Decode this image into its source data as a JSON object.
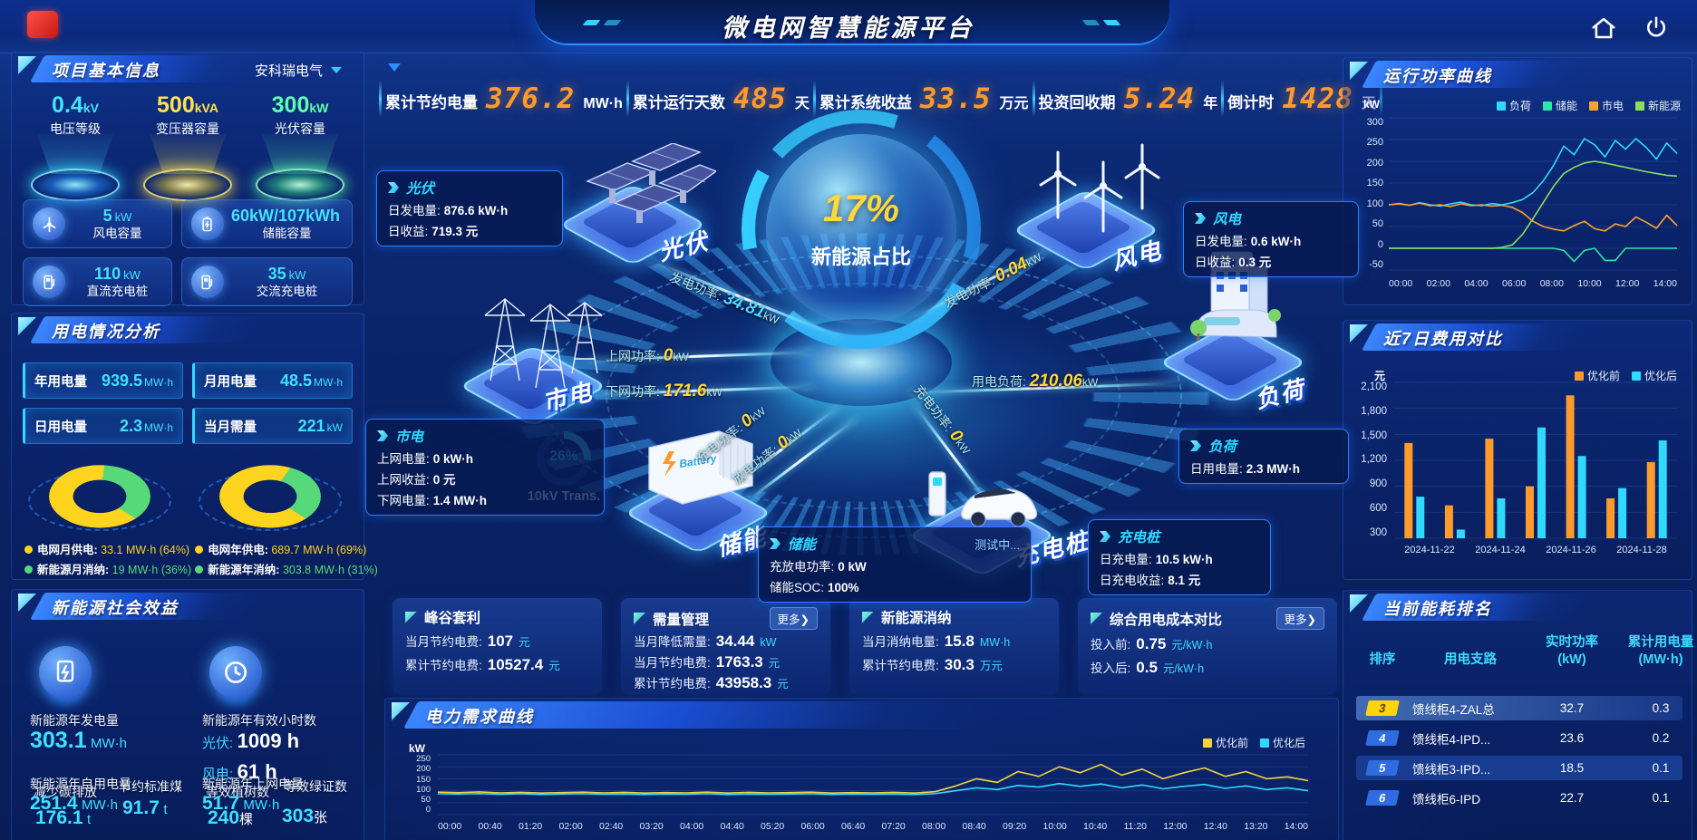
{
  "header": {
    "title": "微电网智慧能源平台"
  },
  "top_stats": [
    {
      "label": "累计节约电量",
      "value": "376.2",
      "unit": "MW·h"
    },
    {
      "label": "累计运行天数",
      "value": "485",
      "unit": "天"
    },
    {
      "label": "累计系统收益",
      "value": "33.5",
      "unit": "万元"
    },
    {
      "label": "投资回收期",
      "value": "5.24",
      "unit": "年"
    },
    {
      "label": "倒计时",
      "value": "1428",
      "unit": "天"
    }
  ],
  "project_info": {
    "title": "项目基本信息",
    "company": "安科瑞电气",
    "podiums": [
      {
        "value": "0.4",
        "unit": "kV",
        "label": "电压等级"
      },
      {
        "value": "500",
        "unit": "kVA",
        "label": "变压器容量"
      },
      {
        "value": "300",
        "unit": "kW",
        "label": "光伏容量"
      }
    ],
    "cards": [
      {
        "value": "5",
        "unit": "kW",
        "label": "风电容量"
      },
      {
        "value": "60kW/107kWh",
        "unit": "",
        "label": "储能容量"
      },
      {
        "value": "110",
        "unit": "kW",
        "label": "直流充电桩"
      },
      {
        "value": "35",
        "unit": "kW",
        "label": "交流充电桩"
      }
    ]
  },
  "usage": {
    "title": "用电情况分析",
    "stats": [
      {
        "label": "年用电量",
        "value": "939.5",
        "unit": "MW·h"
      },
      {
        "label": "月用电量",
        "value": "48.5",
        "unit": "MW·h"
      },
      {
        "label": "日用电量",
        "value": "2.3",
        "unit": "MW·h"
      },
      {
        "label": "当月需量",
        "value": "221",
        "unit": "kW"
      }
    ],
    "month_legend": [
      {
        "label": "电网月供电:",
        "value": "33.1 MW·h (64%)"
      },
      {
        "label": "新能源月消纳:",
        "value": "19 MW·h (36%)"
      }
    ],
    "year_legend": [
      {
        "label": "电网年供电:",
        "value": "689.7 MW·h (69%)"
      },
      {
        "label": "新能源年消纳:",
        "value": "303.8 MW·h (31%)"
      }
    ]
  },
  "benefits": {
    "title": "新能源社会效益",
    "gen_label": "新能源年发电量",
    "gen_value": "303.1",
    "gen_unit": "MW·h",
    "hours_label": "新能源年有效小时数",
    "pv_label": "光伏:",
    "pv_value": "1009 h",
    "wind_label": "风电:",
    "wind_value": "61 h",
    "self_label": "新能源年自用电量",
    "self_value": "251.4",
    "self_unit": "MW·h",
    "co2_label": "减少碳排放",
    "co2_value": "176.1",
    "co2_unit": "t",
    "coal_label": "节约标准煤",
    "coal_value": "91.7",
    "coal_unit": "t",
    "feed_label": "新能源年上网电量",
    "feed_value": "51.7",
    "feed_unit": "MW·h",
    "tree_label": "等效植树数",
    "tree_value": "240",
    "tree_unit": "棵",
    "cert_label": "等效绿证数",
    "cert_value": "303",
    "cert_unit": "张"
  },
  "scene": {
    "ratio_value": "17%",
    "ratio_label": "新能源占比",
    "gauge_value": "26%",
    "gauge_label": "10kV Trans.",
    "battery_box_text": "Battery",
    "nodes": {
      "pv": "光伏",
      "wind": "风电",
      "grid": "市电",
      "load": "负荷",
      "storage": "储能",
      "charger": "充电桩"
    },
    "flows": {
      "pv_gen": {
        "label": "发电功率:",
        "value": "34.81",
        "unit": "kW"
      },
      "grid_up": {
        "label": "上网功率:",
        "value": "0",
        "unit": "kW"
      },
      "grid_down": {
        "label": "下网功率:",
        "value": "171.6",
        "unit": "kW"
      },
      "wind_gen": {
        "label": "发电功率:",
        "value": "0.04",
        "unit": "kW"
      },
      "load_power": {
        "label": "用电负荷:",
        "value": "210.06",
        "unit": "kW"
      },
      "storage_charge": {
        "label": "充电功率:",
        "value": "0",
        "unit": "kW"
      },
      "storage_discharge": {
        "label": "放电功率:",
        "value": "0",
        "unit": "kW"
      },
      "charger_charge": {
        "label": "充电功率:",
        "value": "0",
        "unit": "kW"
      }
    },
    "tooltips": {
      "pv": {
        "title": "光伏",
        "rows": [
          {
            "label": "日发电量:",
            "value": "876.6 kW·h"
          },
          {
            "label": "日收益:",
            "value": "719.3 元"
          }
        ]
      },
      "grid": {
        "title": "市电",
        "rows": [
          {
            "label": "上网电量:",
            "value": "0 kW·h"
          },
          {
            "label": "上网收益:",
            "value": "0 元"
          },
          {
            "label": "下网电量:",
            "value": "1.4 MW·h"
          }
        ]
      },
      "wind": {
        "title": "风电",
        "rows": [
          {
            "label": "日发电量:",
            "value": "0.6 kW·h"
          },
          {
            "label": "日收益:",
            "value": "0.3 元"
          }
        ]
      },
      "load": {
        "title": "负荷",
        "rows": [
          {
            "label": "日用电量:",
            "value": "2.3 MW·h"
          }
        ]
      },
      "storage": {
        "title": "储能",
        "badge": "测试中...",
        "rows": [
          {
            "label": "充放电功率:",
            "value": "0 kW"
          },
          {
            "label": "储能SOC:",
            "value": "100%"
          }
        ]
      },
      "charger": {
        "title": "充电桩",
        "rows": [
          {
            "label": "日充电量:",
            "value": "10.5 kW·h"
          },
          {
            "label": "日充电收益:",
            "value": "8.1 元"
          }
        ]
      }
    }
  },
  "kpis": [
    {
      "title": "峰谷套利",
      "more": "",
      "rows": [
        {
          "label": "当月节约电费:",
          "value": "107",
          "unit": "元"
        },
        {
          "label": "累计节约电费:",
          "value": "10527.4",
          "unit": "元"
        }
      ]
    },
    {
      "title": "需量管理",
      "more": "更多❯",
      "rows": [
        {
          "label": "当月降低需量:",
          "value": "34.44",
          "unit": "kW"
        },
        {
          "label": "当月节约电费:",
          "value": "1763.3",
          "unit": "元"
        },
        {
          "label": "累计节约电费:",
          "value": "43958.3",
          "unit": "元"
        }
      ]
    },
    {
      "title": "新能源消纳",
      "more": "",
      "rows": [
        {
          "label": "当月消纳电量:",
          "value": "15.8",
          "unit": "MW·h"
        },
        {
          "label": "累计节约电费:",
          "value": "30.3",
          "unit": "万元"
        }
      ]
    },
    {
      "title": "综合用电成本对比",
      "more": "更多❯",
      "rows": [
        {
          "label": "投入前:",
          "value": "0.75",
          "unit": "元/kW·h"
        },
        {
          "label": "投入后:",
          "value": "0.5",
          "unit": "元/kW·h"
        }
      ]
    }
  ],
  "panels": {
    "power_curve_title": "运行功率曲线",
    "cost_compare_title": "近7日费用对比",
    "demand_curve_title": "电力需求曲线",
    "ranking_title": "当前能耗排名"
  },
  "ranking": {
    "headers": [
      "排序",
      "用电支路",
      "实时功率 (kW)",
      "累计用电量 (MW·h)"
    ],
    "rows": [
      {
        "rank": "3",
        "name": "馈线柜4-ZAL总",
        "power": "32.7",
        "energy": "0.3"
      },
      {
        "rank": "4",
        "name": "馈线柜4-IPD...",
        "power": "23.6",
        "energy": "0.2"
      },
      {
        "rank": "5",
        "name": "馈线柜3-IPD...",
        "power": "18.5",
        "energy": "0.1"
      },
      {
        "rank": "6",
        "name": "馈线柜6-IPD",
        "power": "22.7",
        "energy": "0.1"
      }
    ]
  },
  "chart_data": [
    {
      "id": "power_curve",
      "type": "line",
      "title": "运行功率曲线",
      "ylabel": "kW",
      "ylim": [
        -50,
        300
      ],
      "yticks": [
        "300",
        "250",
        "200",
        "150",
        "100",
        "50",
        "0",
        "-50"
      ],
      "x_labels": [
        "00:00",
        "02:00",
        "04:00",
        "06:00",
        "08:00",
        "10:00",
        "12:00",
        "14:00"
      ],
      "legend_position": "top-right",
      "grid": false,
      "series": [
        {
          "name": "负荷",
          "color": "#2fd9ff",
          "values": [
            100,
            103,
            99,
            105,
            100,
            97,
            102,
            106,
            100,
            98,
            103,
            100,
            105,
            112,
            128,
            155,
            190,
            235,
            215,
            252,
            238,
            210,
            248,
            228,
            252,
            232,
            205,
            242,
            218
          ]
        },
        {
          "name": "储能",
          "color": "#2ee6a8",
          "values": [
            0,
            0,
            0,
            0,
            0,
            0,
            0,
            0,
            0,
            0,
            0,
            0,
            0,
            0,
            0,
            0,
            0,
            -5,
            -30,
            -5,
            0,
            -28,
            -28,
            0,
            0,
            0,
            0,
            0,
            0
          ]
        },
        {
          "name": "市电",
          "color": "#ffa22e",
          "values": [
            100,
            102,
            99,
            104,
            98,
            100,
            96,
            102,
            98,
            100,
            97,
            99,
            94,
            82,
            62,
            50,
            44,
            40,
            52,
            62,
            45,
            40,
            56,
            50,
            72,
            60,
            46,
            76,
            52
          ]
        },
        {
          "name": "新能源",
          "color": "#8ae05a",
          "values": [
            0,
            0,
            0,
            0,
            0,
            0,
            0,
            0,
            0,
            0,
            0,
            2,
            8,
            32,
            68,
            105,
            142,
            172,
            186,
            196,
            200,
            196,
            191,
            186,
            181,
            176,
            172,
            168,
            166
          ]
        }
      ]
    },
    {
      "id": "cost_compare",
      "type": "bar",
      "title": "近7日费用对比",
      "ylabel": "元",
      "ylim": [
        300,
        2100
      ],
      "yticks": [
        "2,100",
        "1,800",
        "1,500",
        "1,200",
        "900",
        "600",
        "300"
      ],
      "categories": [
        "2024-11-22",
        "2024-11-23",
        "2024-11-24",
        "2024-11-25",
        "2024-11-26",
        "2024-11-27",
        "2024-11-28"
      ],
      "x_tick_labels": [
        "2024-11-22",
        "2024-11-24",
        "2024-11-26",
        "2024-11-28"
      ],
      "legend_position": "top-right",
      "grid": true,
      "series": [
        {
          "name": "优化前",
          "color": "#ff9a2d",
          "values": [
            1400,
            680,
            1450,
            900,
            1950,
            760,
            1180
          ]
        },
        {
          "name": "优化后",
          "color": "#2fd9ff",
          "values": [
            780,
            400,
            760,
            1580,
            1250,
            880,
            1430
          ]
        }
      ]
    },
    {
      "id": "demand_curve",
      "type": "line",
      "title": "电力需求曲线",
      "ylabel": "kW",
      "ylim": [
        0,
        250
      ],
      "yticks": [
        "250",
        "200",
        "150",
        "100",
        "50",
        "0"
      ],
      "x_labels": [
        "00:00",
        "00:40",
        "01:20",
        "02:00",
        "02:40",
        "03:20",
        "04:00",
        "04:40",
        "05:20",
        "06:00",
        "06:40",
        "07:20",
        "08:00",
        "08:40",
        "09:20",
        "10:00",
        "10:40",
        "11:20",
        "12:00",
        "12:40",
        "13:20",
        "14:00"
      ],
      "legend_position": "top-right",
      "grid": false,
      "series": [
        {
          "name": "优化前",
          "color": "#f5d23c",
          "values": [
            94,
            92,
            95,
            91,
            93,
            90,
            92,
            94,
            91,
            93,
            90,
            92,
            91,
            94,
            90,
            93,
            91,
            92,
            94,
            90,
            92,
            91,
            93,
            90,
            96,
            120,
            150,
            135,
            180,
            160,
            200,
            175,
            210,
            165,
            190,
            150,
            175,
            195,
            160,
            180,
            150,
            158,
            142
          ]
        },
        {
          "name": "优化后",
          "color": "#2fd9ff",
          "values": [
            87,
            86,
            88,
            85,
            87,
            84,
            86,
            87,
            85,
            86,
            84,
            86,
            85,
            87,
            84,
            86,
            85,
            86,
            87,
            84,
            86,
            85,
            86,
            84,
            88,
            100,
            112,
            105,
            122,
            115,
            130,
            118,
            128,
            112,
            124,
            108,
            118,
            126,
            110,
            120,
            105,
            112,
            100
          ]
        }
      ]
    },
    {
      "id": "month_supply_donut",
      "type": "pie",
      "slices": [
        {
          "label": "电网月供电",
          "value": 64,
          "color": "#ffd41e"
        },
        {
          "label": "新能源月消纳",
          "value": 36,
          "color": "#57d97a"
        }
      ]
    },
    {
      "id": "year_supply_donut",
      "type": "pie",
      "slices": [
        {
          "label": "电网年供电",
          "value": 69,
          "color": "#ffd41e"
        },
        {
          "label": "新能源年消纳",
          "value": 31,
          "color": "#57d97a"
        }
      ]
    }
  ]
}
